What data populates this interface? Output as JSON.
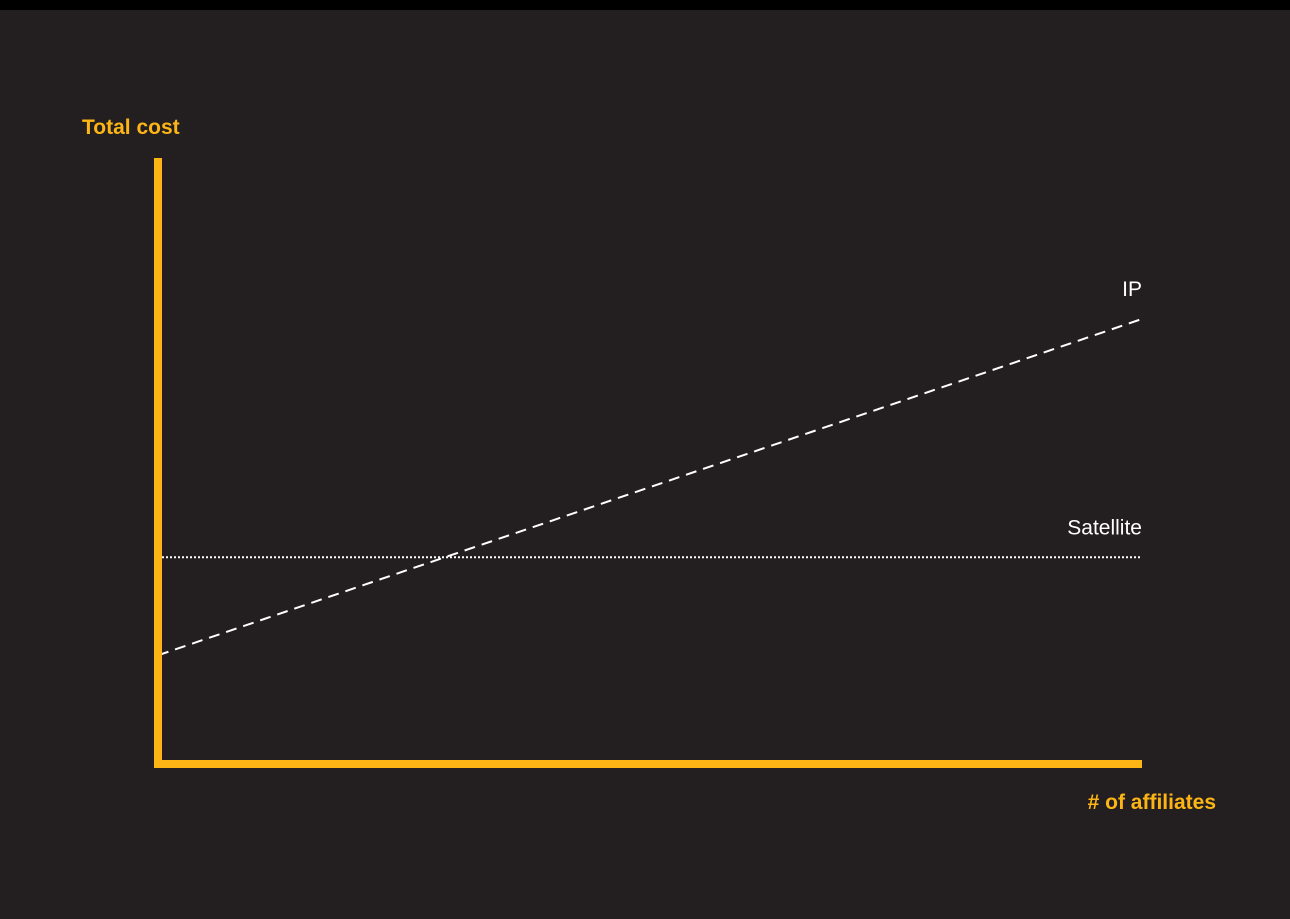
{
  "chart_data": {
    "type": "line",
    "ylabel": "Total cost",
    "xlabel": "# of affiliates",
    "xlim": [
      0,
      100
    ],
    "ylim": [
      0,
      100
    ],
    "grid": false,
    "legend": "none",
    "series": [
      {
        "name": "IP",
        "style": "dashed",
        "color": "#ffffff",
        "x": [
          0,
          100
        ],
        "y": [
          17.8,
          73.4
        ]
      },
      {
        "name": "Satellite",
        "style": "dotted",
        "color": "#ffffff",
        "x": [
          0,
          100
        ],
        "y": [
          34,
          34
        ]
      }
    ]
  },
  "colors": {
    "background": "#231f20",
    "top_bar": "#000000",
    "axis": "#fdb515",
    "axis_title": "#fdb515",
    "series_label": "#ffffff"
  }
}
